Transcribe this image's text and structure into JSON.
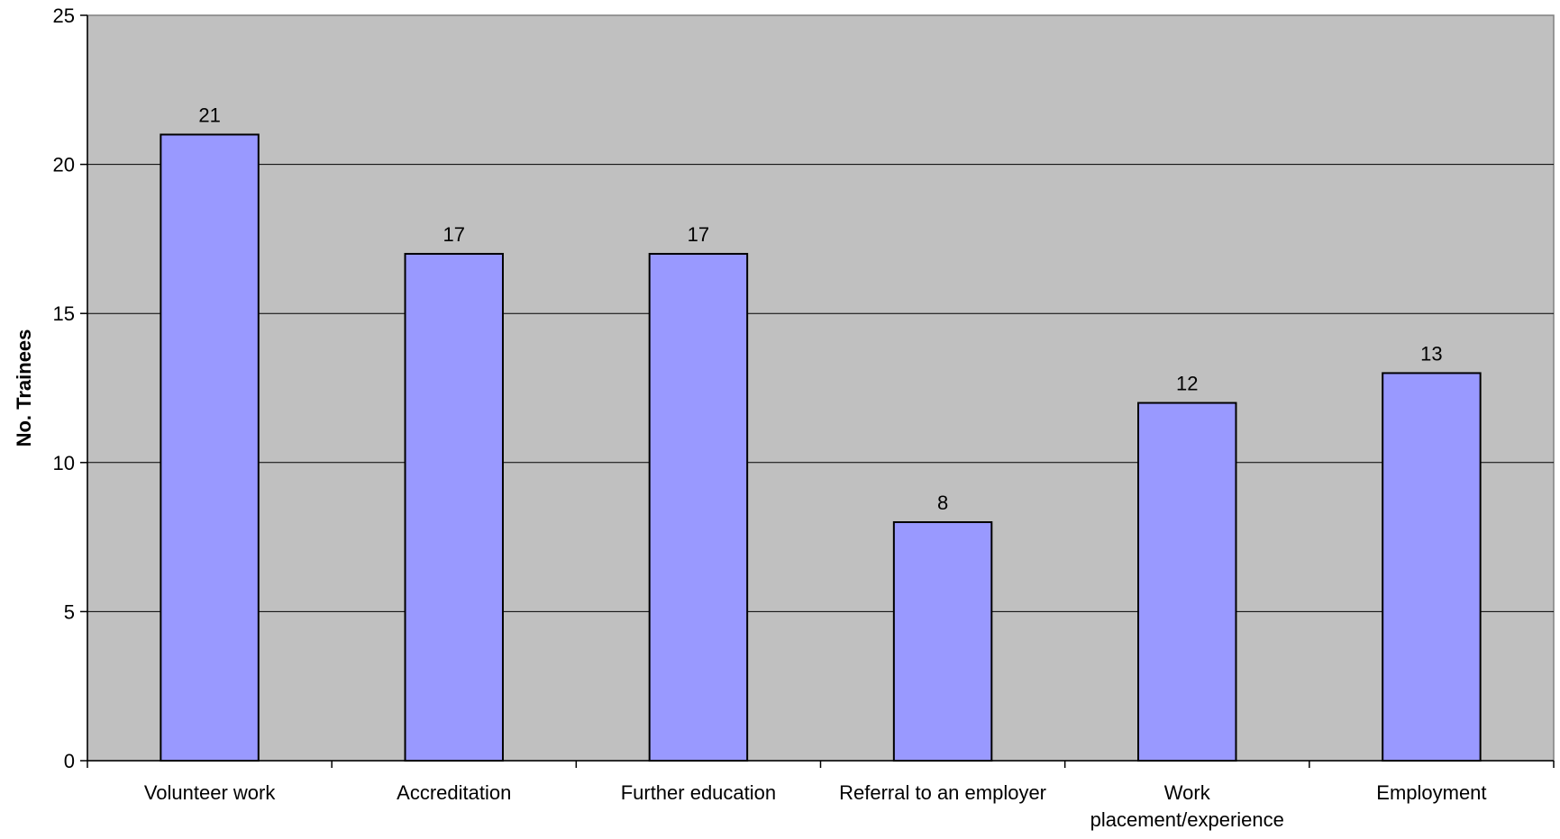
{
  "chart_data": {
    "type": "bar",
    "title": "",
    "xlabel": "",
    "ylabel": "No. Trainees",
    "categories": [
      [
        "Volunteer work"
      ],
      [
        "Accreditation"
      ],
      [
        "Further education"
      ],
      [
        "Referral to an employer"
      ],
      [
        "Work",
        "placement/experience"
      ],
      [
        "Employment"
      ]
    ],
    "values": [
      21,
      17,
      17,
      8,
      12,
      13
    ],
    "ylim": [
      0,
      25
    ],
    "yticks": [
      0,
      5,
      10,
      15,
      20,
      25
    ],
    "grid": true,
    "legend": "none",
    "colors": {
      "plot_background": "#C0C0C0",
      "bar_fill": "#9999FF",
      "bar_stroke": "#000000",
      "gridline": "#000000"
    }
  }
}
